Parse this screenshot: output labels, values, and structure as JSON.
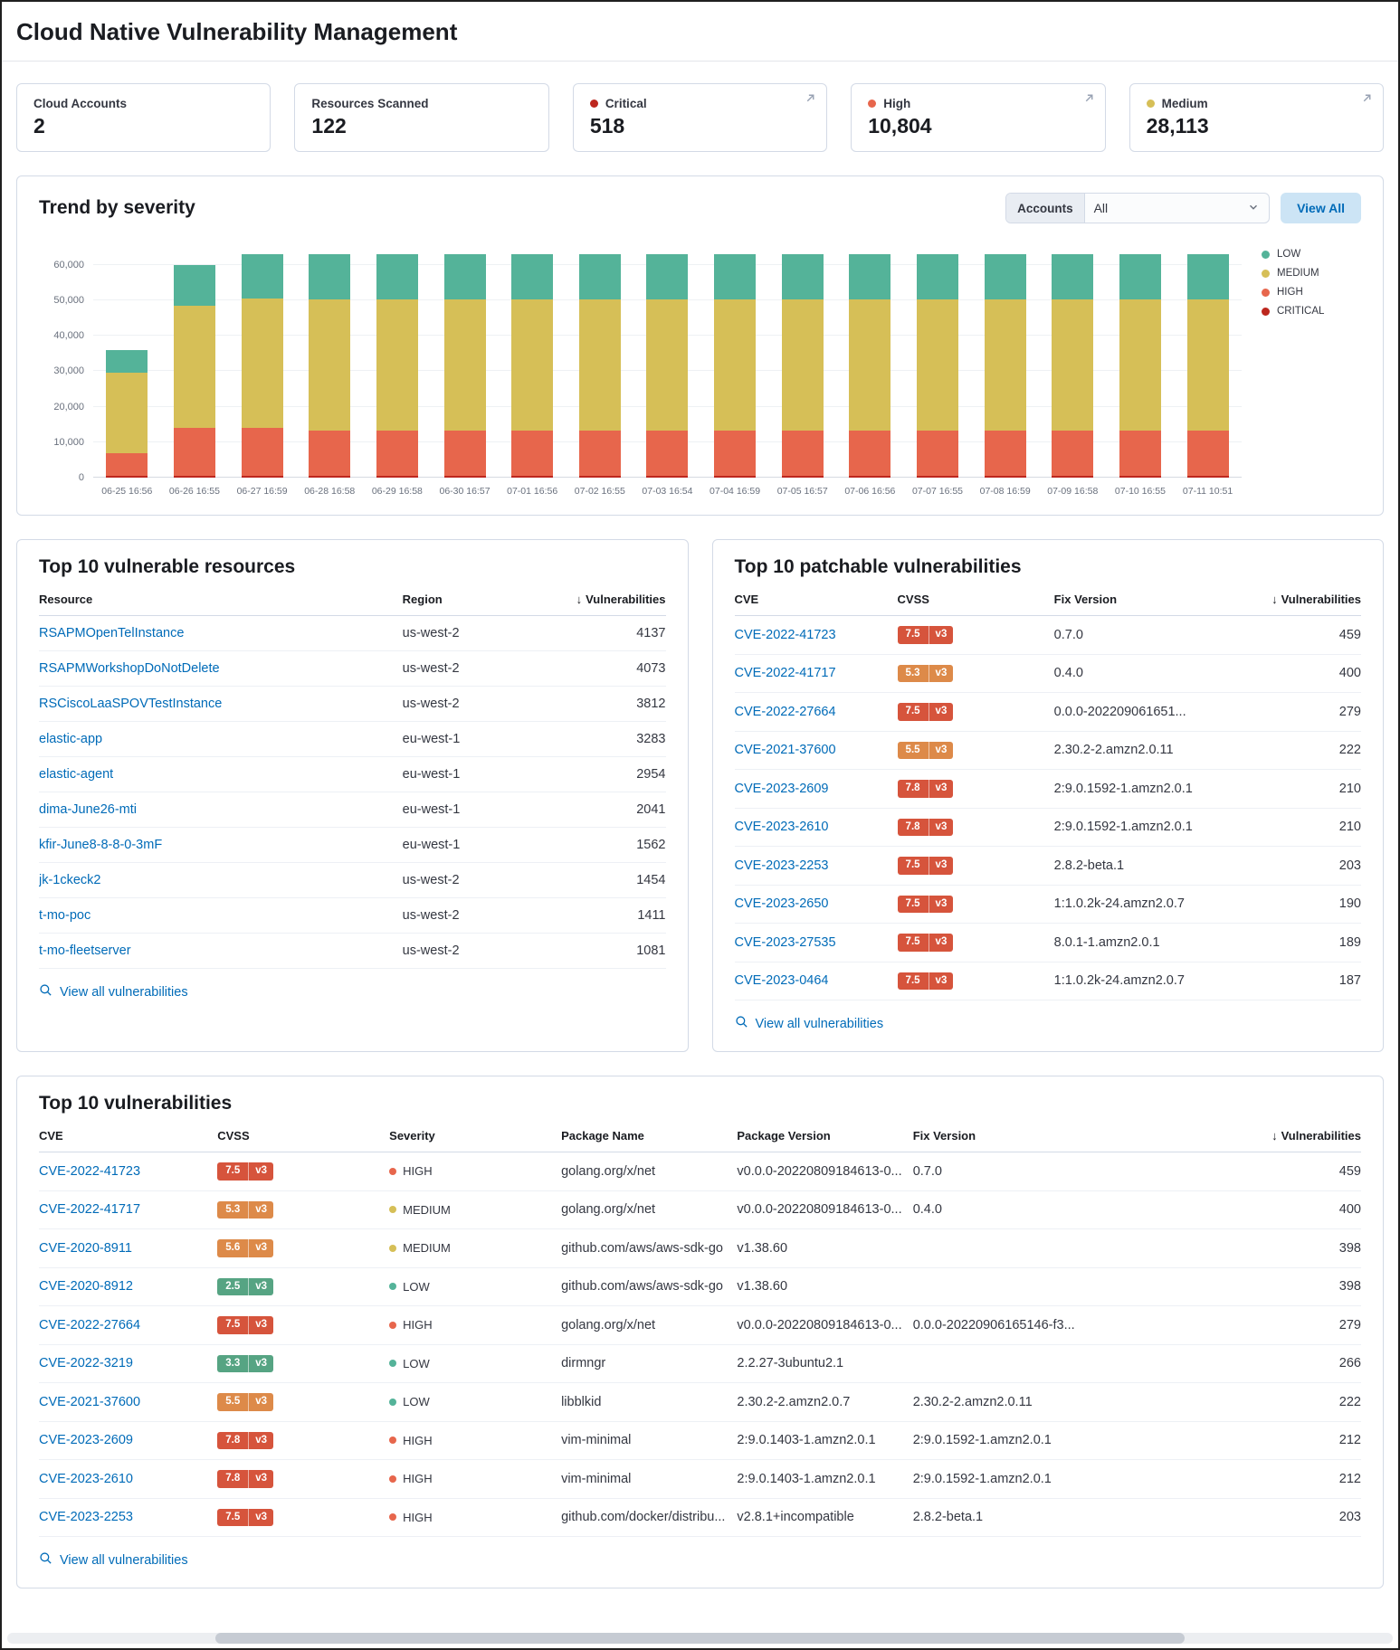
{
  "page": {
    "title": "Cloud Native Vulnerability Management"
  },
  "colors": {
    "link": "#006bb8",
    "button_bg": "#cce4f5",
    "panel_border": "#d3dae6",
    "badge_high": "#d6543c",
    "badge_medium": "#dd8a49",
    "badge_low": "#56a483",
    "dot_high": "#e7664c",
    "dot_medium": "#d6bf57",
    "dot_low": "#54b399",
    "dot_critical": "#bd271e"
  },
  "stats": [
    {
      "label": "Cloud Accounts",
      "value": "2",
      "dot_color": null,
      "expandable": false
    },
    {
      "label": "Resources Scanned",
      "value": "122",
      "dot_color": null,
      "expandable": false
    },
    {
      "label": "Critical",
      "value": "518",
      "dot_color": "#bd271e",
      "expandable": true
    },
    {
      "label": "High",
      "value": "10,804",
      "dot_color": "#e7664c",
      "expandable": true
    },
    {
      "label": "Medium",
      "value": "28,113",
      "dot_color": "#d6bf57",
      "expandable": true
    }
  ],
  "trend": {
    "title": "Trend by severity",
    "accounts_label": "Accounts",
    "accounts_value": "All",
    "view_all_label": "View All"
  },
  "chart_data": {
    "type": "bar",
    "stacked": true,
    "title": "Trend by severity",
    "xlabel": "",
    "ylabel": "",
    "ylim": [
      0,
      65000
    ],
    "yticks": [
      0,
      10000,
      20000,
      30000,
      40000,
      50000,
      60000
    ],
    "grid": true,
    "legend_position": "right",
    "stack_order": [
      "CRITICAL",
      "HIGH",
      "MEDIUM",
      "LOW"
    ],
    "categories": [
      "06-25 16:56",
      "06-26 16:55",
      "06-27 16:59",
      "06-28 16:58",
      "06-29 16:58",
      "06-30 16:57",
      "07-01 16:56",
      "07-02 16:55",
      "07-03 16:54",
      "07-04 16:59",
      "07-05 16:57",
      "07-06 16:56",
      "07-07 16:55",
      "07-08 16:59",
      "07-09 16:58",
      "07-10 16:55",
      "07-11 10:51"
    ],
    "series": [
      {
        "name": "LOW",
        "color": "#54b399",
        "values": [
          6500,
          11500,
          12500,
          12700,
          12700,
          12700,
          12700,
          12700,
          12700,
          12700,
          12700,
          12700,
          12700,
          12700,
          12700,
          12700,
          12700
        ]
      },
      {
        "name": "MEDIUM",
        "color": "#d6bf57",
        "values": [
          22500,
          34500,
          36500,
          37000,
          37000,
          37000,
          37000,
          37000,
          37000,
          37000,
          37000,
          37000,
          37000,
          37000,
          37000,
          37000,
          37000
        ]
      },
      {
        "name": "HIGH",
        "color": "#e7664c",
        "values": [
          6600,
          13400,
          13400,
          12800,
          12800,
          12800,
          12800,
          12800,
          12800,
          12800,
          12800,
          12800,
          12800,
          12800,
          12800,
          12800,
          12800
        ]
      },
      {
        "name": "CRITICAL",
        "color": "#bd271e",
        "values": [
          400,
          600,
          600,
          500,
          500,
          500,
          500,
          500,
          500,
          500,
          500,
          500,
          500,
          500,
          500,
          500,
          500
        ]
      }
    ]
  },
  "top_resources": {
    "title": "Top 10 vulnerable resources",
    "footer_link": "View all vulnerabilities",
    "columns": [
      {
        "key": "resource",
        "label": "Resource",
        "type": "link",
        "width": "58%"
      },
      {
        "key": "region",
        "label": "Region",
        "type": "text",
        "width": "24%"
      },
      {
        "key": "count",
        "label": "Vulnerabilities",
        "type": "number",
        "align": "right",
        "sorted": true,
        "width": "18%"
      }
    ],
    "rows": [
      {
        "resource": "RSAPMOpenTelInstance",
        "region": "us-west-2",
        "count": "4137"
      },
      {
        "resource": "RSAPMWorkshopDoNotDelete",
        "region": "us-west-2",
        "count": "4073"
      },
      {
        "resource": "RSCiscoLaaSPOVTestInstance",
        "region": "us-west-2",
        "count": "3812"
      },
      {
        "resource": "elastic-app",
        "region": "eu-west-1",
        "count": "3283"
      },
      {
        "resource": "elastic-agent",
        "region": "eu-west-1",
        "count": "2954"
      },
      {
        "resource": "dima-June26-mti",
        "region": "eu-west-1",
        "count": "2041"
      },
      {
        "resource": "kfir-June8-8-8-0-3mF",
        "region": "eu-west-1",
        "count": "1562"
      },
      {
        "resource": "jk-1ckeck2",
        "region": "us-west-2",
        "count": "1454"
      },
      {
        "resource": "t-mo-poc",
        "region": "us-west-2",
        "count": "1411"
      },
      {
        "resource": "t-mo-fleetserver",
        "region": "us-west-2",
        "count": "1081"
      }
    ]
  },
  "top_patchable": {
    "title": "Top 10 patchable vulnerabilities",
    "footer_link": "View all vulnerabilities",
    "columns": [
      {
        "key": "cve",
        "label": "CVE",
        "type": "link",
        "width": "26%"
      },
      {
        "key": "cvss",
        "label": "CVSS",
        "type": "badge",
        "width": "25%"
      },
      {
        "key": "fix",
        "label": "Fix Version",
        "type": "text",
        "width": "29%"
      },
      {
        "key": "count",
        "label": "Vulnerabilities",
        "type": "number",
        "align": "right",
        "sorted": true,
        "width": "20%"
      }
    ],
    "rows": [
      {
        "cve": "CVE-2022-41723",
        "cvss": {
          "score": "7.5",
          "version": "v3",
          "level": "high"
        },
        "fix": "0.7.0",
        "count": "459"
      },
      {
        "cve": "CVE-2022-41717",
        "cvss": {
          "score": "5.3",
          "version": "v3",
          "level": "medium"
        },
        "fix": "0.4.0",
        "count": "400"
      },
      {
        "cve": "CVE-2022-27664",
        "cvss": {
          "score": "7.5",
          "version": "v3",
          "level": "high"
        },
        "fix": "0.0.0-202209061651...",
        "count": "279"
      },
      {
        "cve": "CVE-2021-37600",
        "cvss": {
          "score": "5.5",
          "version": "v3",
          "level": "medium"
        },
        "fix": "2.30.2-2.amzn2.0.11",
        "count": "222"
      },
      {
        "cve": "CVE-2023-2609",
        "cvss": {
          "score": "7.8",
          "version": "v3",
          "level": "high"
        },
        "fix": "2:9.0.1592-1.amzn2.0.1",
        "count": "210"
      },
      {
        "cve": "CVE-2023-2610",
        "cvss": {
          "score": "7.8",
          "version": "v3",
          "level": "high"
        },
        "fix": "2:9.0.1592-1.amzn2.0.1",
        "count": "210"
      },
      {
        "cve": "CVE-2023-2253",
        "cvss": {
          "score": "7.5",
          "version": "v3",
          "level": "high"
        },
        "fix": "2.8.2-beta.1",
        "count": "203"
      },
      {
        "cve": "CVE-2023-2650",
        "cvss": {
          "score": "7.5",
          "version": "v3",
          "level": "high"
        },
        "fix": "1:1.0.2k-24.amzn2.0.7",
        "count": "190"
      },
      {
        "cve": "CVE-2023-27535",
        "cvss": {
          "score": "7.5",
          "version": "v3",
          "level": "high"
        },
        "fix": "8.0.1-1.amzn2.0.1",
        "count": "189"
      },
      {
        "cve": "CVE-2023-0464",
        "cvss": {
          "score": "7.5",
          "version": "v3",
          "level": "high"
        },
        "fix": "1:1.0.2k-24.amzn2.0.7",
        "count": "187"
      }
    ]
  },
  "top_vulnerabilities": {
    "title": "Top 10 vulnerabilities",
    "footer_link": "View all vulnerabilities",
    "columns": [
      {
        "key": "cve",
        "label": "CVE",
        "type": "link",
        "width": "13.5%"
      },
      {
        "key": "cvss",
        "label": "CVSS",
        "type": "badge",
        "width": "13%"
      },
      {
        "key": "severity",
        "label": "Severity",
        "type": "severity",
        "width": "13%"
      },
      {
        "key": "package_name",
        "label": "Package Name",
        "type": "text",
        "width": "13.3%"
      },
      {
        "key": "package_version",
        "label": "Package Version",
        "type": "text",
        "width": "13.3%"
      },
      {
        "key": "fix",
        "label": "Fix Version",
        "type": "text",
        "width": "19%"
      },
      {
        "key": "count",
        "label": "Vulnerabilities",
        "type": "number",
        "align": "right",
        "sorted": true
      }
    ],
    "rows": [
      {
        "cve": "CVE-2022-41723",
        "cvss": {
          "score": "7.5",
          "version": "v3",
          "level": "high"
        },
        "severity": {
          "label": "HIGH",
          "level": "high"
        },
        "package_name": "golang.org/x/net",
        "package_version": "v0.0.0-20220809184613-0...",
        "fix": "0.7.0",
        "count": "459"
      },
      {
        "cve": "CVE-2022-41717",
        "cvss": {
          "score": "5.3",
          "version": "v3",
          "level": "medium"
        },
        "severity": {
          "label": "MEDIUM",
          "level": "medium"
        },
        "package_name": "golang.org/x/net",
        "package_version": "v0.0.0-20220809184613-0...",
        "fix": "0.4.0",
        "count": "400"
      },
      {
        "cve": "CVE-2020-8911",
        "cvss": {
          "score": "5.6",
          "version": "v3",
          "level": "medium"
        },
        "severity": {
          "label": "MEDIUM",
          "level": "medium"
        },
        "package_name": "github.com/aws/aws-sdk-go",
        "package_version": "v1.38.60",
        "fix": "",
        "count": "398"
      },
      {
        "cve": "CVE-2020-8912",
        "cvss": {
          "score": "2.5",
          "version": "v3",
          "level": "low"
        },
        "severity": {
          "label": "LOW",
          "level": "low"
        },
        "package_name": "github.com/aws/aws-sdk-go",
        "package_version": "v1.38.60",
        "fix": "",
        "count": "398"
      },
      {
        "cve": "CVE-2022-27664",
        "cvss": {
          "score": "7.5",
          "version": "v3",
          "level": "high"
        },
        "severity": {
          "label": "HIGH",
          "level": "high"
        },
        "package_name": "golang.org/x/net",
        "package_version": "v0.0.0-20220809184613-0...",
        "fix": "0.0.0-20220906165146-f3...",
        "count": "279"
      },
      {
        "cve": "CVE-2022-3219",
        "cvss": {
          "score": "3.3",
          "version": "v3",
          "level": "low"
        },
        "severity": {
          "label": "LOW",
          "level": "low"
        },
        "package_name": "dirmngr",
        "package_version": "2.2.27-3ubuntu2.1",
        "fix": "",
        "count": "266"
      },
      {
        "cve": "CVE-2021-37600",
        "cvss": {
          "score": "5.5",
          "version": "v3",
          "level": "medium"
        },
        "severity": {
          "label": "LOW",
          "level": "low"
        },
        "package_name": "libblkid",
        "package_version": "2.30.2-2.amzn2.0.7",
        "fix": "2.30.2-2.amzn2.0.11",
        "count": "222"
      },
      {
        "cve": "CVE-2023-2609",
        "cvss": {
          "score": "7.8",
          "version": "v3",
          "level": "high"
        },
        "severity": {
          "label": "HIGH",
          "level": "high"
        },
        "package_name": "vim-minimal",
        "package_version": "2:9.0.1403-1.amzn2.0.1",
        "fix": "2:9.0.1592-1.amzn2.0.1",
        "count": "212"
      },
      {
        "cve": "CVE-2023-2610",
        "cvss": {
          "score": "7.8",
          "version": "v3",
          "level": "high"
        },
        "severity": {
          "label": "HIGH",
          "level": "high"
        },
        "package_name": "vim-minimal",
        "package_version": "2:9.0.1403-1.amzn2.0.1",
        "fix": "2:9.0.1592-1.amzn2.0.1",
        "count": "212"
      },
      {
        "cve": "CVE-2023-2253",
        "cvss": {
          "score": "7.5",
          "version": "v3",
          "level": "high"
        },
        "severity": {
          "label": "HIGH",
          "level": "high"
        },
        "package_name": "github.com/docker/distribu...",
        "package_version": "v2.8.1+incompatible",
        "fix": "2.8.2-beta.1",
        "count": "203"
      }
    ]
  }
}
